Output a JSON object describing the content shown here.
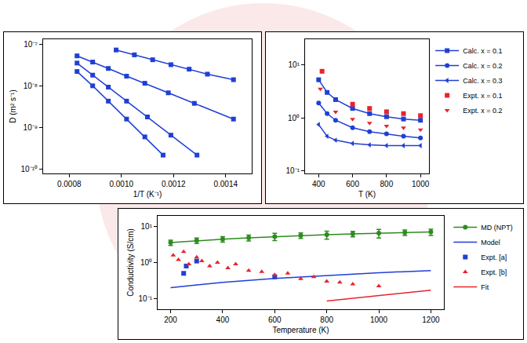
{
  "chart_data": [
    {
      "type": "line",
      "x_label": "1/T (K⁻¹)",
      "y_label": "D (m² s⁻¹)",
      "xlim": [
        0.0007,
        0.0015
      ],
      "xticks": [
        {
          "value": 0.0008,
          "label": "0.0008"
        },
        {
          "value": 0.001,
          "label": "0.0010"
        },
        {
          "value": 0.0012,
          "label": "0.0012"
        },
        {
          "value": 0.0014,
          "label": "0.0014"
        }
      ],
      "ylim": [
        8e-11,
        1.3e-07
      ],
      "yticks": [
        {
          "value": 1e-10,
          "label": "10⁻¹⁰"
        },
        {
          "value": 1e-09,
          "label": "10⁻⁹"
        },
        {
          "value": 1e-08,
          "label": "10⁻⁸"
        },
        {
          "value": 1e-07,
          "label": "10⁻⁷"
        }
      ],
      "log": "y",
      "grid": false,
      "series": [
        {
          "color": "#1f3fd6",
          "marker": "square",
          "line_style": "solid",
          "x": [
            0.00098,
            0.00105,
            0.00112,
            0.00119,
            0.00126,
            0.00133,
            0.00143
          ],
          "values": [
            7.2e-08,
            5.5e-08,
            4.2e-08,
            3.2e-08,
            2.5e-08,
            1.9e-08,
            1.4e-08
          ]
        },
        {
          "color": "#1f3fd6",
          "marker": "square",
          "line_style": "solid",
          "x": [
            0.00083,
            0.00089,
            0.00095,
            0.00102,
            0.00109,
            0.00118,
            0.00128,
            0.00143
          ],
          "values": [
            5.2e-08,
            3.7e-08,
            2.6e-08,
            1.7e-08,
            1.15e-08,
            6.8e-09,
            3.8e-09,
            1.6e-09
          ]
        },
        {
          "color": "#1f3fd6",
          "marker": "square",
          "line_style": "solid",
          "x": [
            0.00083,
            0.00089,
            0.00095,
            0.00102,
            0.0011,
            0.00119,
            0.00129
          ],
          "values": [
            3.5e-08,
            1.8e-08,
            9.3e-09,
            4.3e-09,
            1.8e-09,
            6.6e-10,
            2.2e-10
          ]
        },
        {
          "color": "#1f3fd6",
          "marker": "square",
          "line_style": "solid",
          "x": [
            0.00083,
            0.00089,
            0.00095,
            0.00102,
            0.00109,
            0.00116
          ],
          "values": [
            2.2e-08,
            1e-08,
            4.3e-09,
            1.6e-09,
            6e-10,
            2.2e-10
          ]
        }
      ]
    },
    {
      "type": "line",
      "x_label": "T (K)",
      "xlim": [
        320,
        1050
      ],
      "xticks": [
        400,
        600,
        800,
        1000
      ],
      "ylim": [
        0.09,
        30
      ],
      "yticks": [
        {
          "value": 0.1,
          "label": "10⁻¹"
        },
        {
          "value": 1,
          "label": "10⁰"
        },
        {
          "value": 10,
          "label": "10¹"
        }
      ],
      "log": "y",
      "grid": false,
      "legend": "right",
      "series": [
        {
          "name": "Calc. x = 0.1",
          "type": "line",
          "color": "#1f3fd6",
          "marker": "square",
          "line_style": "solid",
          "x": [
            400,
            450,
            500,
            600,
            700,
            800,
            900,
            1000
          ],
          "values": [
            5.2,
            3.0,
            2.2,
            1.5,
            1.2,
            1.05,
            0.95,
            0.9
          ]
        },
        {
          "name": "Calc. x = 0.2",
          "type": "line",
          "color": "#1f3fd6",
          "marker": "circle",
          "line_style": "solid",
          "x": [
            400,
            450,
            500,
            600,
            700,
            800,
            900,
            1000
          ],
          "values": [
            1.9,
            1.2,
            0.9,
            0.65,
            0.55,
            0.5,
            0.45,
            0.42
          ]
        },
        {
          "name": "Calc. x = 0.3",
          "type": "line",
          "color": "#1f3fd6",
          "marker": "triangle-left",
          "line_style": "solid",
          "x": [
            400,
            450,
            500,
            600,
            700,
            800,
            900,
            1000
          ],
          "values": [
            0.75,
            0.45,
            0.38,
            0.33,
            0.31,
            0.3,
            0.3,
            0.3
          ]
        },
        {
          "name": "Expt. x = 0.1",
          "type": "scatter",
          "color": "#e8242b",
          "marker": "square",
          "x": [
            420,
            600,
            700,
            800,
            900,
            1000
          ],
          "values": [
            7.5,
            1.8,
            1.5,
            1.3,
            1.2,
            1.1
          ]
        },
        {
          "name": "Expt. x = 0.2",
          "type": "scatter",
          "color": "#e8242b",
          "marker": "triangle-down",
          "x": [
            410,
            500,
            600,
            700,
            800,
            900,
            1000
          ],
          "values": [
            3.5,
            1.3,
            0.95,
            0.8,
            0.7,
            0.65,
            0.6
          ]
        }
      ]
    },
    {
      "type": "line",
      "x_label": "Temperature (K)",
      "y_label": "Conductivity (S/cm)",
      "xlim": [
        150,
        1250
      ],
      "xticks": [
        200,
        400,
        600,
        800,
        1000,
        1200
      ],
      "ylim": [
        0.05,
        20
      ],
      "yticks": [
        {
          "value": 0.1,
          "label": "10⁻¹"
        },
        {
          "value": 1,
          "label": "10⁰"
        },
        {
          "value": 10,
          "label": "10¹"
        }
      ],
      "log": "y",
      "grid": false,
      "legend": "right",
      "series": [
        {
          "name": "MD (NPT)",
          "type": "line",
          "color": "#2e8b1f",
          "marker": "circle",
          "line_style": "solid",
          "x": [
            200,
            300,
            400,
            500,
            600,
            700,
            800,
            900,
            1000,
            1100,
            1200
          ],
          "values": [
            3.6,
            4.1,
            4.5,
            4.9,
            5.3,
            5.7,
            6.0,
            6.3,
            6.6,
            6.9,
            7.1
          ],
          "errors": [
            0.6,
            0.7,
            0.8,
            0.9,
            1.2,
            1.0,
            1.5,
            1.1,
            1.8,
            1.2,
            1.4
          ]
        },
        {
          "name": "Model",
          "type": "line",
          "color": "#1f3fd6",
          "line_style": "solid",
          "x": [
            200,
            400,
            600,
            800,
            1000,
            1200
          ],
          "values": [
            0.2,
            0.28,
            0.36,
            0.44,
            0.52,
            0.6
          ]
        },
        {
          "name": "Expt. [a]",
          "type": "scatter",
          "color": "#1f3fd6",
          "marker": "square",
          "x": [
            250,
            260,
            300,
            600
          ],
          "values": [
            0.5,
            0.8,
            1.1,
            0.4
          ]
        },
        {
          "name": "Expt. [b]",
          "type": "scatter",
          "color": "#e8242b",
          "marker": "triangle-up",
          "x": [
            210,
            230,
            250,
            270,
            300,
            320,
            350,
            380,
            420,
            450,
            500,
            550,
            600,
            650,
            700,
            750,
            800,
            850,
            900,
            1000
          ],
          "values": [
            1.6,
            1.2,
            2.0,
            0.9,
            1.4,
            1.1,
            0.8,
            1.0,
            0.7,
            0.9,
            0.6,
            0.55,
            0.45,
            0.5,
            0.35,
            0.4,
            0.3,
            0.28,
            0.25,
            0.22
          ]
        },
        {
          "name": "Fit",
          "type": "line",
          "color": "#e8242b",
          "line_style": "solid",
          "x": [
            800,
            950,
            1100,
            1200
          ],
          "values": [
            0.085,
            0.11,
            0.14,
            0.17
          ]
        }
      ]
    }
  ]
}
